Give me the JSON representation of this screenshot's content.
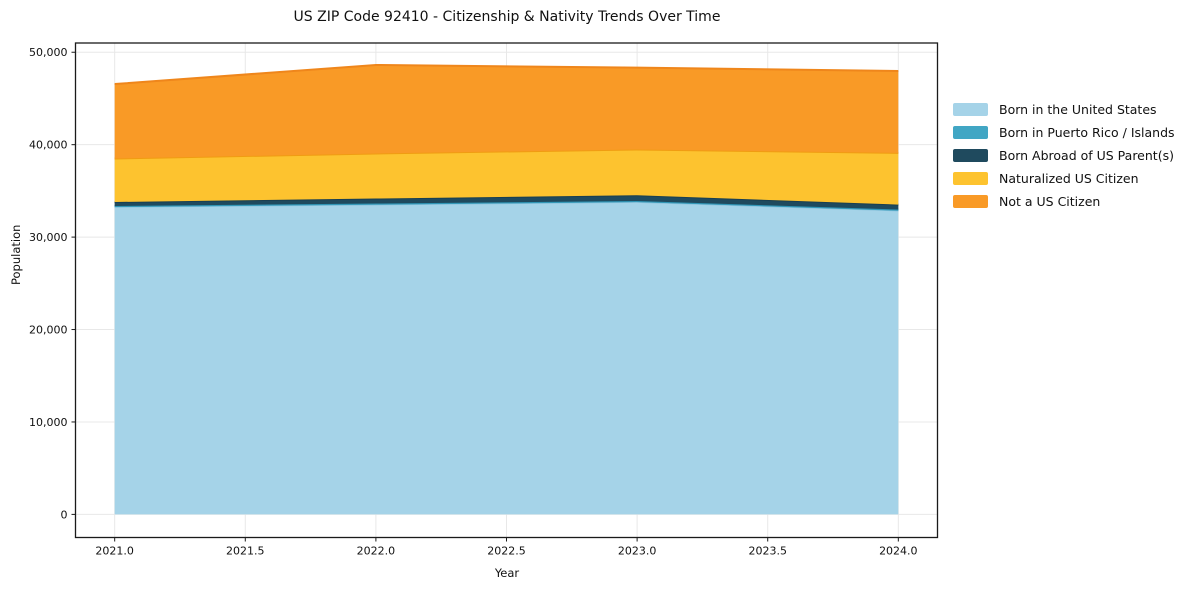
{
  "title": "US ZIP Code 92410 - Citizenship & Nativity Trends Over Time",
  "chart_data": {
    "type": "area",
    "stacked": true,
    "title": "US ZIP Code 92410 - Citizenship & Nativity Trends Over Time",
    "xlabel": "Year",
    "ylabel": "Population",
    "x": [
      2021,
      2022,
      2023,
      2024
    ],
    "series": [
      {
        "name": "Born in the United States",
        "color": "#a5d3e8",
        "edge": "#8cc3dd",
        "values": [
          33250,
          33500,
          33780,
          32850
        ]
      },
      {
        "name": "Born in Puerto Rico / Islands",
        "color": "#41a6c4",
        "edge": "#2f94b4",
        "values": [
          120,
          130,
          130,
          130
        ]
      },
      {
        "name": "Born Abroad of US Parent(s)",
        "color": "#1f4a5e",
        "edge": "#1a3f51",
        "values": [
          430,
          540,
          620,
          540
        ]
      },
      {
        "name": "Naturalized US Citizen",
        "color": "#fdc32f",
        "edge": "#f09c12",
        "values": [
          4700,
          4880,
          4950,
          5590
        ]
      },
      {
        "name": "Not a US Citizen",
        "color": "#f99a26",
        "edge": "#ef861b",
        "values": [
          8060,
          9570,
          8850,
          8860
        ]
      }
    ],
    "totals": [
      46560,
      48620,
      48330,
      47970
    ],
    "xticks": {
      "values": [
        2021.0,
        2021.5,
        2022.0,
        2022.5,
        2023.0,
        2023.5,
        2024.0
      ],
      "labels": [
        "2021.0",
        "2021.5",
        "2022.0",
        "2022.5",
        "2023.0",
        "2023.5",
        "2024.0"
      ]
    },
    "yticks": {
      "values": [
        0,
        10000,
        20000,
        30000,
        40000,
        50000
      ],
      "labels": [
        "0",
        "10,000",
        "20,000",
        "30,000",
        "40,000",
        "50,000"
      ]
    },
    "xlim": [
      2020.85,
      2024.15
    ],
    "ylim": [
      -2500,
      51000
    ],
    "grid": true,
    "grid_color": "#e8e8e8",
    "spine_color": "#1a1a1a",
    "background": "#ffffff",
    "legend_position": "right"
  }
}
